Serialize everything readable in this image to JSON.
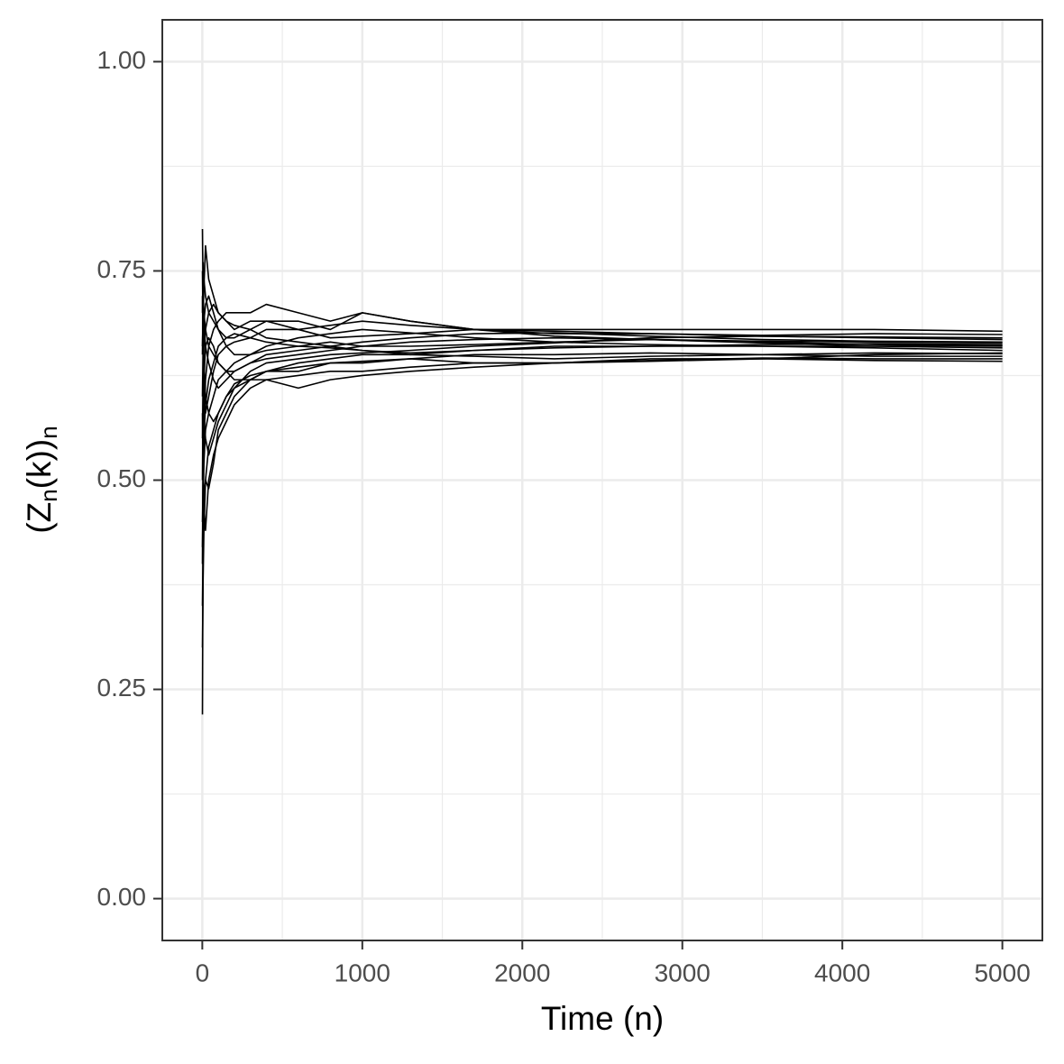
{
  "chart_data": {
    "type": "line",
    "xlabel": "Time (n)",
    "ylabel_parts": [
      "(Z",
      "n",
      "(k))",
      "n"
    ],
    "x": [
      1,
      5,
      10,
      20,
      40,
      70,
      100,
      150,
      200,
      300,
      400,
      600,
      800,
      1000,
      1300,
      1700,
      2200,
      2800,
      3500,
      4200,
      5000
    ],
    "line_color": "#000000",
    "series": [
      {
        "values": [
          0.22,
          0.45,
          0.55,
          0.62,
          0.66,
          0.68,
          0.69,
          0.7,
          0.7,
          0.7,
          0.71,
          0.7,
          0.69,
          0.7,
          0.69,
          0.68,
          0.68,
          0.68,
          0.68,
          0.68,
          0.678
        ]
      },
      {
        "values": [
          0.8,
          0.72,
          0.7,
          0.68,
          0.66,
          0.65,
          0.64,
          0.63,
          0.62,
          0.62,
          0.62,
          0.625,
          0.63,
          0.63,
          0.635,
          0.64,
          0.64,
          0.645,
          0.645,
          0.643,
          0.642
        ]
      },
      {
        "values": [
          0.35,
          0.42,
          0.48,
          0.5,
          0.49,
          0.52,
          0.56,
          0.58,
          0.6,
          0.62,
          0.63,
          0.64,
          0.645,
          0.65,
          0.65,
          0.655,
          0.66,
          0.66,
          0.66,
          0.658,
          0.655
        ]
      },
      {
        "values": [
          0.7,
          0.76,
          0.74,
          0.72,
          0.7,
          0.69,
          0.68,
          0.67,
          0.67,
          0.68,
          0.69,
          0.69,
          0.68,
          0.7,
          0.69,
          0.68,
          0.675,
          0.675,
          0.672,
          0.67,
          0.668
        ]
      },
      {
        "values": [
          0.5,
          0.6,
          0.58,
          0.55,
          0.53,
          0.55,
          0.57,
          0.59,
          0.61,
          0.62,
          0.63,
          0.63,
          0.64,
          0.64,
          0.645,
          0.65,
          0.65,
          0.652,
          0.65,
          0.648,
          0.648
        ]
      },
      {
        "values": [
          0.6,
          0.66,
          0.69,
          0.71,
          0.72,
          0.7,
          0.68,
          0.66,
          0.65,
          0.65,
          0.655,
          0.66,
          0.665,
          0.66,
          0.66,
          0.662,
          0.665,
          0.668,
          0.665,
          0.662,
          0.66
        ]
      },
      {
        "values": [
          0.45,
          0.5,
          0.47,
          0.44,
          0.5,
          0.53,
          0.55,
          0.57,
          0.59,
          0.61,
          0.62,
          0.61,
          0.62,
          0.625,
          0.63,
          0.635,
          0.64,
          0.642,
          0.645,
          0.65,
          0.652
        ]
      },
      {
        "values": [
          0.66,
          0.7,
          0.73,
          0.78,
          0.74,
          0.72,
          0.7,
          0.69,
          0.68,
          0.69,
          0.69,
          0.68,
          0.67,
          0.672,
          0.675,
          0.68,
          0.678,
          0.675,
          0.673,
          0.675,
          0.674
        ]
      },
      {
        "values": [
          0.4,
          0.55,
          0.62,
          0.66,
          0.67,
          0.66,
          0.64,
          0.63,
          0.63,
          0.64,
          0.645,
          0.65,
          0.655,
          0.66,
          0.665,
          0.668,
          0.67,
          0.668,
          0.666,
          0.665,
          0.664
        ]
      },
      {
        "values": [
          0.75,
          0.68,
          0.64,
          0.6,
          0.58,
          0.6,
          0.62,
          0.63,
          0.64,
          0.65,
          0.66,
          0.67,
          0.675,
          0.68,
          0.676,
          0.67,
          0.665,
          0.662,
          0.66,
          0.66,
          0.661
        ]
      },
      {
        "values": [
          0.3,
          0.38,
          0.44,
          0.5,
          0.54,
          0.56,
          0.58,
          0.6,
          0.61,
          0.63,
          0.64,
          0.645,
          0.65,
          0.652,
          0.655,
          0.66,
          0.664,
          0.67,
          0.672,
          0.671,
          0.67
        ]
      },
      {
        "values": [
          0.55,
          0.62,
          0.66,
          0.68,
          0.7,
          0.71,
          0.7,
          0.69,
          0.685,
          0.68,
          0.67,
          0.665,
          0.66,
          0.655,
          0.65,
          0.648,
          0.645,
          0.648,
          0.65,
          0.652,
          0.651
        ]
      },
      {
        "values": [
          0.72,
          0.66,
          0.61,
          0.58,
          0.6,
          0.63,
          0.65,
          0.66,
          0.665,
          0.67,
          0.68,
          0.68,
          0.685,
          0.69,
          0.685,
          0.68,
          0.672,
          0.668,
          0.664,
          0.66,
          0.658
        ]
      },
      {
        "values": [
          0.42,
          0.48,
          0.52,
          0.56,
          0.58,
          0.57,
          0.58,
          0.6,
          0.615,
          0.625,
          0.63,
          0.635,
          0.64,
          0.642,
          0.645,
          0.64,
          0.64,
          0.643,
          0.646,
          0.645,
          0.645
        ]
      },
      {
        "values": [
          0.65,
          0.72,
          0.69,
          0.66,
          0.64,
          0.62,
          0.61,
          0.62,
          0.63,
          0.64,
          0.65,
          0.655,
          0.66,
          0.665,
          0.67,
          0.675,
          0.676,
          0.672,
          0.668,
          0.666,
          0.665
        ]
      },
      {
        "values": [
          0.58,
          0.52,
          0.55,
          0.59,
          0.62,
          0.64,
          0.66,
          0.67,
          0.675,
          0.67,
          0.665,
          0.66,
          0.658,
          0.655,
          0.652,
          0.655,
          0.658,
          0.66,
          0.662,
          0.663,
          0.662
        ]
      }
    ],
    "xlim": [
      -250,
      5250
    ],
    "ylim": [
      -0.05,
      1.05
    ],
    "xticks": [
      0,
      1000,
      2000,
      3000,
      4000,
      5000
    ],
    "yticks": [
      {
        "value": 0,
        "label": "0.00"
      },
      {
        "value": 0.25,
        "label": "0.25"
      },
      {
        "value": 0.5,
        "label": "0.50"
      },
      {
        "value": 0.75,
        "label": "0.75"
      },
      {
        "value": 1,
        "label": "1.00"
      }
    ],
    "x_minor_grid": [
      500,
      1500,
      2500,
      3500,
      4500
    ],
    "y_minor_grid": [
      0.125,
      0.375,
      0.625,
      0.875
    ],
    "grid": true
  }
}
